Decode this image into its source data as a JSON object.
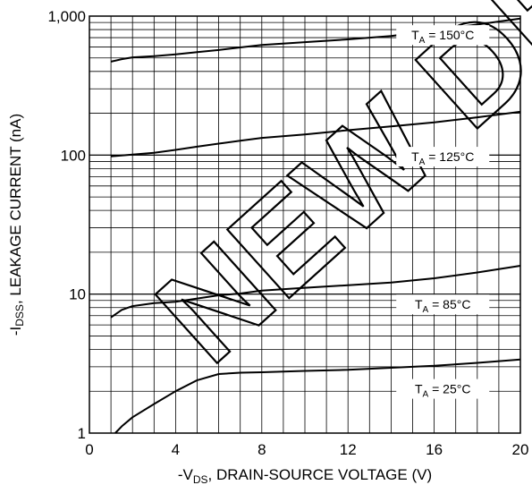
{
  "chart_data": {
    "type": "line",
    "xlabel": "-V",
    "xlabel_sub": "DS",
    "xlabel_rest": ", DRAIN-SOURCE VOLTAGE (V)",
    "ylabel_prefix": "-I",
    "ylabel_sub": "DSS",
    "ylabel_rest": ", LEAKAGE CURRENT (nA)",
    "xlim": [
      0,
      20
    ],
    "ylim": [
      1,
      1000
    ],
    "yscale": "log",
    "x_ticks": [
      {
        "value": 0,
        "label": "0"
      },
      {
        "value": 4,
        "label": "4"
      },
      {
        "value": 8,
        "label": "8"
      },
      {
        "value": 12,
        "label": "12"
      },
      {
        "value": 16,
        "label": "16"
      },
      {
        "value": 20,
        "label": "20"
      }
    ],
    "y_ticks": [
      {
        "value": 1,
        "label": "1"
      },
      {
        "value": 10,
        "label": "10"
      },
      {
        "value": 100,
        "label": "100"
      },
      {
        "value": 1000,
        "label": "1,000"
      }
    ],
    "grid": true,
    "series": [
      {
        "label_main": "T",
        "label_sub": "A",
        "label_rest": " = 150°C",
        "label_at": {
          "x": 16.4,
          "y": 720
        },
        "points": [
          [
            1.0,
            470
          ],
          [
            1.5,
            490
          ],
          [
            2.0,
            505
          ],
          [
            3.0,
            515
          ],
          [
            4.0,
            530
          ],
          [
            5.0,
            550
          ],
          [
            6.0,
            570
          ],
          [
            7.0,
            595
          ],
          [
            8.0,
            620
          ],
          [
            10.0,
            650
          ],
          [
            12.0,
            680
          ],
          [
            14.0,
            720
          ],
          [
            16.0,
            790
          ],
          [
            18.0,
            870
          ],
          [
            20.0,
            960
          ]
        ]
      },
      {
        "label_main": "T",
        "label_sub": "A",
        "label_rest": " = 125°C",
        "label_at": {
          "x": 16.4,
          "y": 96
        },
        "points": [
          [
            1.0,
            98
          ],
          [
            2.0,
            101
          ],
          [
            3.0,
            104
          ],
          [
            4.0,
            109
          ],
          [
            5.0,
            115
          ],
          [
            6.0,
            121
          ],
          [
            7.0,
            127
          ],
          [
            8.0,
            133
          ],
          [
            10.0,
            141
          ],
          [
            12.0,
            151
          ],
          [
            14.0,
            161
          ],
          [
            16.0,
            172
          ],
          [
            18.0,
            187
          ],
          [
            20.0,
            205
          ]
        ]
      },
      {
        "label_main": "T",
        "label_sub": "A",
        "label_rest": " = 85°C",
        "label_at": {
          "x": 16.4,
          "y": 8.3
        },
        "points": [
          [
            1.0,
            6.8
          ],
          [
            1.5,
            7.7
          ],
          [
            2.0,
            8.2
          ],
          [
            3.0,
            8.6
          ],
          [
            4.0,
            8.8
          ],
          [
            5.0,
            9.3
          ],
          [
            6.0,
            9.8
          ],
          [
            7.0,
            10.1
          ],
          [
            8.0,
            10.6
          ],
          [
            10.0,
            11.1
          ],
          [
            12.0,
            11.6
          ],
          [
            14.0,
            12.1
          ],
          [
            16.0,
            13.0
          ],
          [
            18.0,
            14.3
          ],
          [
            20.0,
            16.0
          ]
        ]
      },
      {
        "label_main": "T",
        "label_sub": "A",
        "label_rest": " = 25°C",
        "label_at": {
          "x": 16.4,
          "y": 2.05
        },
        "points": [
          [
            1.2,
            1.0
          ],
          [
            1.5,
            1.12
          ],
          [
            2.0,
            1.3
          ],
          [
            3.0,
            1.62
          ],
          [
            4.0,
            2.0
          ],
          [
            5.0,
            2.4
          ],
          [
            6.0,
            2.66
          ],
          [
            7.0,
            2.72
          ],
          [
            8.0,
            2.74
          ],
          [
            10.0,
            2.8
          ],
          [
            12.0,
            2.85
          ],
          [
            14.0,
            2.95
          ],
          [
            16.0,
            3.05
          ],
          [
            18.0,
            3.2
          ],
          [
            20.0,
            3.38
          ]
        ]
      }
    ],
    "watermark": "NEW DESIGN"
  }
}
